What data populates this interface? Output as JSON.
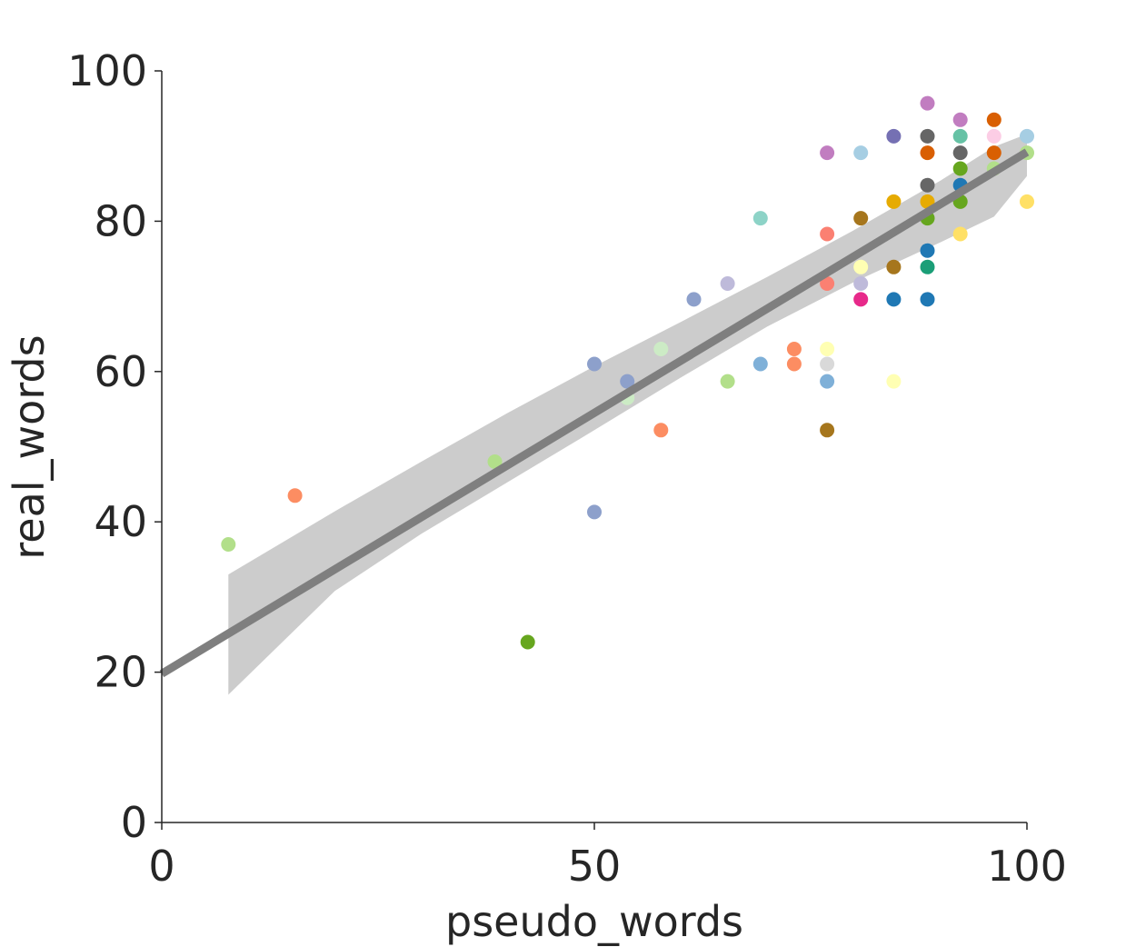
{
  "chart_data": {
    "type": "scatter",
    "title": "",
    "xlabel": "pseudo_words",
    "ylabel": "real_words",
    "xlim": [
      0,
      100
    ],
    "ylim": [
      0,
      100
    ],
    "xticks": [
      0,
      50,
      100
    ],
    "yticks": [
      0,
      20,
      40,
      60,
      80,
      100
    ],
    "grid": false,
    "legend": "none",
    "regression": {
      "color": "#7f7f7f",
      "band_color": "#cccccc",
      "line": [
        [
          0,
          19.8
        ],
        [
          100,
          89.2
        ]
      ],
      "band": {
        "x": [
          7.7,
          20,
          30,
          40,
          50,
          60,
          70,
          80,
          90,
          96.2,
          100
        ],
        "upper": [
          33,
          41.4,
          48.0,
          54.5,
          60.7,
          66.6,
          72.6,
          78.8,
          85.4,
          89.9,
          91.6
        ],
        "lower": [
          17,
          30.8,
          38.4,
          45.3,
          52.2,
          59.2,
          66.0,
          71.9,
          77.2,
          80.6,
          86.0
        ]
      }
    },
    "points": [
      {
        "x": 7.7,
        "y": 37,
        "color": "#b2df8a"
      },
      {
        "x": 15.4,
        "y": 43.5,
        "color": "#fc8d62"
      },
      {
        "x": 38.5,
        "y": 48,
        "color": "#b2df8a"
      },
      {
        "x": 42.3,
        "y": 24,
        "color": "#66a61e"
      },
      {
        "x": 50,
        "y": 61,
        "color": "#8da0cb"
      },
      {
        "x": 50,
        "y": 41.3,
        "color": "#8da0cb"
      },
      {
        "x": 53.8,
        "y": 58.7,
        "color": "#8da0cb"
      },
      {
        "x": 53.8,
        "y": 56.5,
        "color": "#ccebc5"
      },
      {
        "x": 57.7,
        "y": 63,
        "color": "#ccebc5"
      },
      {
        "x": 57.7,
        "y": 52.2,
        "color": "#fc8d62"
      },
      {
        "x": 61.5,
        "y": 69.6,
        "color": "#8da0cb"
      },
      {
        "x": 65.4,
        "y": 71.7,
        "color": "#bebada"
      },
      {
        "x": 65.4,
        "y": 58.7,
        "color": "#b2df8a"
      },
      {
        "x": 69.2,
        "y": 80.4,
        "color": "#8dd3c7"
      },
      {
        "x": 69.2,
        "y": 61,
        "color": "#7fb0d8"
      },
      {
        "x": 73.1,
        "y": 63,
        "color": "#fc8d62"
      },
      {
        "x": 73.1,
        "y": 61,
        "color": "#fc8d62"
      },
      {
        "x": 76.9,
        "y": 89.1,
        "color": "#c17dc0"
      },
      {
        "x": 76.9,
        "y": 78.3,
        "color": "#fb8072"
      },
      {
        "x": 76.9,
        "y": 71.7,
        "color": "#fb8072"
      },
      {
        "x": 76.9,
        "y": 63,
        "color": "#ffffb3"
      },
      {
        "x": 76.9,
        "y": 61,
        "color": "#d9d9d9"
      },
      {
        "x": 76.9,
        "y": 58.7,
        "color": "#7fb0d8"
      },
      {
        "x": 76.9,
        "y": 52.2,
        "color": "#a6761d"
      },
      {
        "x": 80.8,
        "y": 89.1,
        "color": "#a6cee3"
      },
      {
        "x": 80.8,
        "y": 80.4,
        "color": "#a6761d"
      },
      {
        "x": 80.8,
        "y": 73.9,
        "color": "#ffffb3"
      },
      {
        "x": 80.8,
        "y": 71.7,
        "color": "#bebada"
      },
      {
        "x": 80.8,
        "y": 69.6,
        "color": "#e7298a"
      },
      {
        "x": 84.6,
        "y": 91.3,
        "color": "#7570b3"
      },
      {
        "x": 84.6,
        "y": 82.6,
        "color": "#e6ab02"
      },
      {
        "x": 84.6,
        "y": 73.9,
        "color": "#a6761d"
      },
      {
        "x": 84.6,
        "y": 69.6,
        "color": "#1f78b4"
      },
      {
        "x": 84.6,
        "y": 58.7,
        "color": "#ffffb3"
      },
      {
        "x": 88.5,
        "y": 95.7,
        "color": "#c17dc0"
      },
      {
        "x": 88.5,
        "y": 91.3,
        "color": "#666666"
      },
      {
        "x": 88.5,
        "y": 89.1,
        "color": "#d95f02"
      },
      {
        "x": 88.5,
        "y": 84.8,
        "color": "#666666"
      },
      {
        "x": 88.5,
        "y": 82.6,
        "color": "#e6ab02"
      },
      {
        "x": 88.5,
        "y": 80.4,
        "color": "#66a61e"
      },
      {
        "x": 88.5,
        "y": 76.1,
        "color": "#1f78b4"
      },
      {
        "x": 88.5,
        "y": 73.9,
        "color": "#1b9e77"
      },
      {
        "x": 88.5,
        "y": 69.6,
        "color": "#1f78b4"
      },
      {
        "x": 92.3,
        "y": 93.5,
        "color": "#c17dc0"
      },
      {
        "x": 92.3,
        "y": 91.3,
        "color": "#66c2a5"
      },
      {
        "x": 92.3,
        "y": 89.1,
        "color": "#666666"
      },
      {
        "x": 92.3,
        "y": 87,
        "color": "#66a61e"
      },
      {
        "x": 92.3,
        "y": 84.8,
        "color": "#1f78b4"
      },
      {
        "x": 92.3,
        "y": 82.6,
        "color": "#66a61e"
      },
      {
        "x": 92.3,
        "y": 78.3,
        "color": "#ffe066"
      },
      {
        "x": 96.2,
        "y": 93.5,
        "color": "#d95f02"
      },
      {
        "x": 96.2,
        "y": 91.3,
        "color": "#fccde5"
      },
      {
        "x": 96.2,
        "y": 89.1,
        "color": "#d95f02"
      },
      {
        "x": 96.2,
        "y": 87,
        "color": "#b2df8a"
      },
      {
        "x": 100,
        "y": 91.3,
        "color": "#a6cee3"
      },
      {
        "x": 100,
        "y": 89.1,
        "color": "#b2df8a"
      },
      {
        "x": 100,
        "y": 82.6,
        "color": "#ffe066"
      }
    ]
  }
}
